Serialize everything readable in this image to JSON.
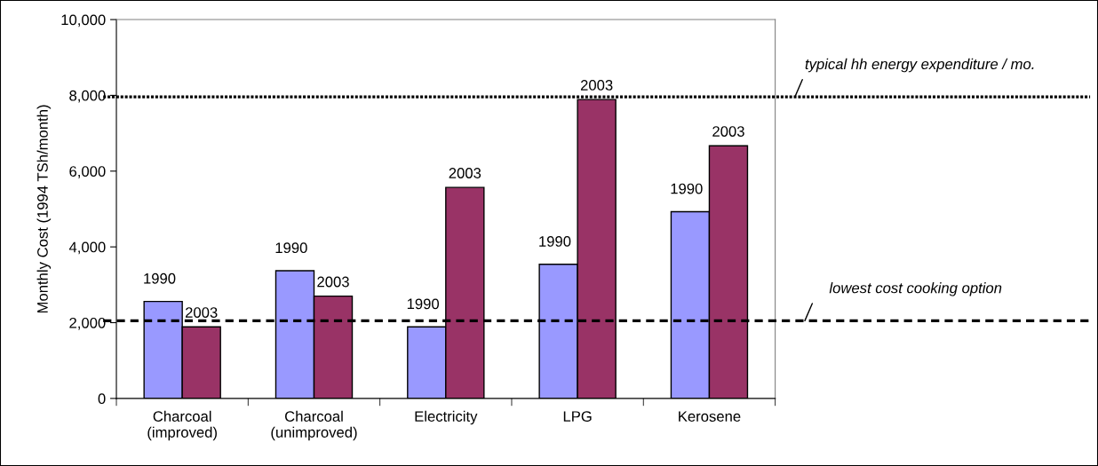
{
  "chart_data": {
    "type": "bar",
    "ylabel": "Monthly Cost (1994 TSh/month)",
    "categories": [
      "Charcoal\n(improved)",
      "Charcoal\n(unimproved)",
      "Electricity",
      "LPG",
      "Kerosene"
    ],
    "series": [
      {
        "name": "1990",
        "color": "#9999ff",
        "values": [
          2560,
          3370,
          1890,
          3540,
          4930
        ]
      },
      {
        "name": "2003",
        "color": "#993366",
        "values": [
          1890,
          2700,
          5570,
          7890,
          6670
        ]
      }
    ],
    "ylim": [
      0,
      10000
    ],
    "yticks": [
      {
        "value": 0,
        "label": "0"
      },
      {
        "value": 2000,
        "label": "2,000"
      },
      {
        "value": 4000,
        "label": "4,000"
      },
      {
        "value": 6000,
        "label": "6,000"
      },
      {
        "value": 8000,
        "label": "8,000"
      },
      {
        "value": 10000,
        "label": "10,000"
      }
    ],
    "ref_lines": [
      {
        "axis": "y",
        "value": 7960,
        "label": "typical hh energy expenditure / mo.",
        "color": "#000000",
        "line_style": "dotted"
      },
      {
        "axis": "y",
        "value": 2050,
        "label": "lowest cost cooking option",
        "color": "#000000",
        "line_style": "dashed"
      }
    ],
    "grid": false,
    "legend": false
  }
}
